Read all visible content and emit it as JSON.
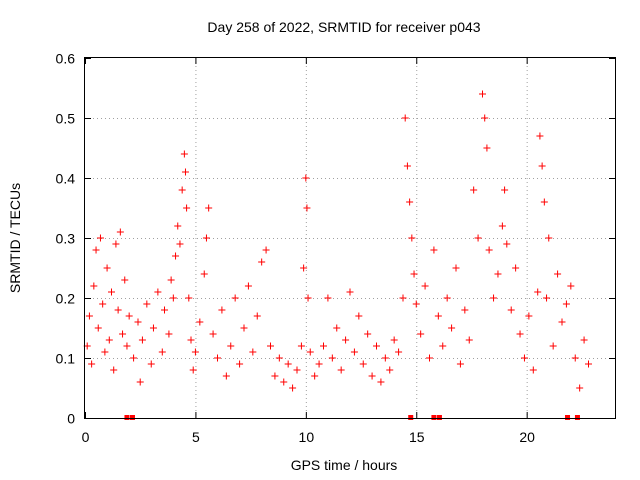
{
  "chart_data": {
    "type": "scatter",
    "title": "Day 258 of 2022, SRMTID for receiver p043",
    "xlabel": "GPS time / hours",
    "ylabel": "SRMTID / TECUs",
    "xlim": [
      0,
      24
    ],
    "ylim": [
      0,
      0.6
    ],
    "x_ticks": [
      0,
      5,
      10,
      15,
      20
    ],
    "x_tick_labels": [
      "0",
      "5",
      "10",
      "15",
      "20"
    ],
    "y_ticks": [
      0,
      0.1,
      0.2,
      0.3,
      0.4,
      0.5,
      0.6
    ],
    "y_tick_labels": [
      "0",
      "0.1",
      "0.2",
      "0.3",
      "0.4",
      "0.5",
      "0.6"
    ],
    "grid": true,
    "marker": "+",
    "color": "#ff0000",
    "series": [
      {
        "name": "SRMTID",
        "points": [
          [
            0.1,
            0.12
          ],
          [
            0.2,
            0.17
          ],
          [
            0.3,
            0.09
          ],
          [
            0.4,
            0.22
          ],
          [
            0.5,
            0.28
          ],
          [
            0.6,
            0.15
          ],
          [
            0.7,
            0.3
          ],
          [
            0.8,
            0.19
          ],
          [
            0.9,
            0.11
          ],
          [
            1.0,
            0.25
          ],
          [
            1.1,
            0.13
          ],
          [
            1.2,
            0.21
          ],
          [
            1.3,
            0.08
          ],
          [
            1.4,
            0.29
          ],
          [
            1.5,
            0.18
          ],
          [
            1.6,
            0.31
          ],
          [
            1.7,
            0.14
          ],
          [
            1.8,
            0.23
          ],
          [
            1.9,
            0.12
          ],
          [
            2.0,
            0.17
          ],
          [
            2.2,
            0.1
          ],
          [
            2.4,
            0.16
          ],
          [
            2.5,
            0.06
          ],
          [
            2.6,
            0.13
          ],
          [
            2.8,
            0.19
          ],
          [
            3.0,
            0.09
          ],
          [
            3.1,
            0.15
          ],
          [
            3.3,
            0.21
          ],
          [
            3.5,
            0.11
          ],
          [
            3.6,
            0.18
          ],
          [
            3.8,
            0.14
          ],
          [
            3.9,
            0.23
          ],
          [
            4.0,
            0.2
          ],
          [
            4.1,
            0.27
          ],
          [
            4.2,
            0.32
          ],
          [
            4.3,
            0.29
          ],
          [
            4.4,
            0.38
          ],
          [
            4.5,
            0.44
          ],
          [
            4.55,
            0.41
          ],
          [
            4.6,
            0.35
          ],
          [
            4.7,
            0.2
          ],
          [
            4.8,
            0.13
          ],
          [
            4.9,
            0.08
          ],
          [
            5.0,
            0.11
          ],
          [
            5.2,
            0.16
          ],
          [
            5.4,
            0.24
          ],
          [
            5.5,
            0.3
          ],
          [
            5.6,
            0.35
          ],
          [
            5.8,
            0.14
          ],
          [
            6.0,
            0.1
          ],
          [
            6.2,
            0.18
          ],
          [
            6.4,
            0.07
          ],
          [
            6.6,
            0.12
          ],
          [
            6.8,
            0.2
          ],
          [
            7.0,
            0.09
          ],
          [
            7.2,
            0.15
          ],
          [
            7.4,
            0.22
          ],
          [
            7.6,
            0.11
          ],
          [
            7.8,
            0.17
          ],
          [
            8.0,
            0.26
          ],
          [
            8.2,
            0.28
          ],
          [
            8.4,
            0.12
          ],
          [
            8.6,
            0.07
          ],
          [
            8.8,
            0.1
          ],
          [
            9.0,
            0.06
          ],
          [
            9.2,
            0.09
          ],
          [
            9.4,
            0.05
          ],
          [
            9.6,
            0.08
          ],
          [
            9.8,
            0.12
          ],
          [
            9.9,
            0.25
          ],
          [
            10.0,
            0.4
          ],
          [
            10.05,
            0.35
          ],
          [
            10.1,
            0.2
          ],
          [
            10.2,
            0.11
          ],
          [
            10.4,
            0.07
          ],
          [
            10.6,
            0.09
          ],
          [
            10.8,
            0.12
          ],
          [
            11.0,
            0.2
          ],
          [
            11.2,
            0.1
          ],
          [
            11.4,
            0.15
          ],
          [
            11.6,
            0.08
          ],
          [
            11.8,
            0.13
          ],
          [
            12.0,
            0.21
          ],
          [
            12.2,
            0.11
          ],
          [
            12.4,
            0.17
          ],
          [
            12.6,
            0.09
          ],
          [
            12.8,
            0.14
          ],
          [
            13.0,
            0.07
          ],
          [
            13.2,
            0.12
          ],
          [
            13.4,
            0.06
          ],
          [
            13.6,
            0.1
          ],
          [
            13.8,
            0.08
          ],
          [
            14.0,
            0.13
          ],
          [
            14.2,
            0.11
          ],
          [
            14.4,
            0.2
          ],
          [
            14.5,
            0.5
          ],
          [
            14.6,
            0.42
          ],
          [
            14.7,
            0.36
          ],
          [
            14.8,
            0.3
          ],
          [
            14.9,
            0.24
          ],
          [
            15.0,
            0.19
          ],
          [
            15.2,
            0.14
          ],
          [
            15.4,
            0.22
          ],
          [
            15.6,
            0.1
          ],
          [
            15.8,
            0.28
          ],
          [
            16.0,
            0.17
          ],
          [
            16.2,
            0.12
          ],
          [
            16.4,
            0.2
          ],
          [
            16.6,
            0.15
          ],
          [
            16.8,
            0.25
          ],
          [
            17.0,
            0.09
          ],
          [
            17.2,
            0.18
          ],
          [
            17.4,
            0.13
          ],
          [
            17.6,
            0.38
          ],
          [
            17.8,
            0.3
          ],
          [
            18.0,
            0.54
          ],
          [
            18.1,
            0.5
          ],
          [
            18.2,
            0.45
          ],
          [
            18.3,
            0.28
          ],
          [
            18.5,
            0.2
          ],
          [
            18.7,
            0.24
          ],
          [
            18.9,
            0.32
          ],
          [
            19.0,
            0.38
          ],
          [
            19.1,
            0.29
          ],
          [
            19.3,
            0.18
          ],
          [
            19.5,
            0.25
          ],
          [
            19.7,
            0.14
          ],
          [
            19.9,
            0.1
          ],
          [
            20.1,
            0.17
          ],
          [
            20.3,
            0.08
          ],
          [
            20.5,
            0.21
          ],
          [
            20.6,
            0.47
          ],
          [
            20.7,
            0.42
          ],
          [
            20.8,
            0.36
          ],
          [
            20.9,
            0.2
          ],
          [
            21.0,
            0.3
          ],
          [
            21.2,
            0.12
          ],
          [
            21.4,
            0.24
          ],
          [
            21.6,
            0.16
          ],
          [
            21.8,
            0.19
          ],
          [
            22.0,
            0.22
          ],
          [
            22.2,
            0.1
          ],
          [
            22.4,
            0.05
          ],
          [
            22.6,
            0.13
          ],
          [
            22.8,
            0.09
          ]
        ]
      }
    ],
    "gap_markers_x": [
      1.9,
      2.15,
      14.75,
      15.8,
      16.05,
      21.85,
      22.3
    ]
  }
}
